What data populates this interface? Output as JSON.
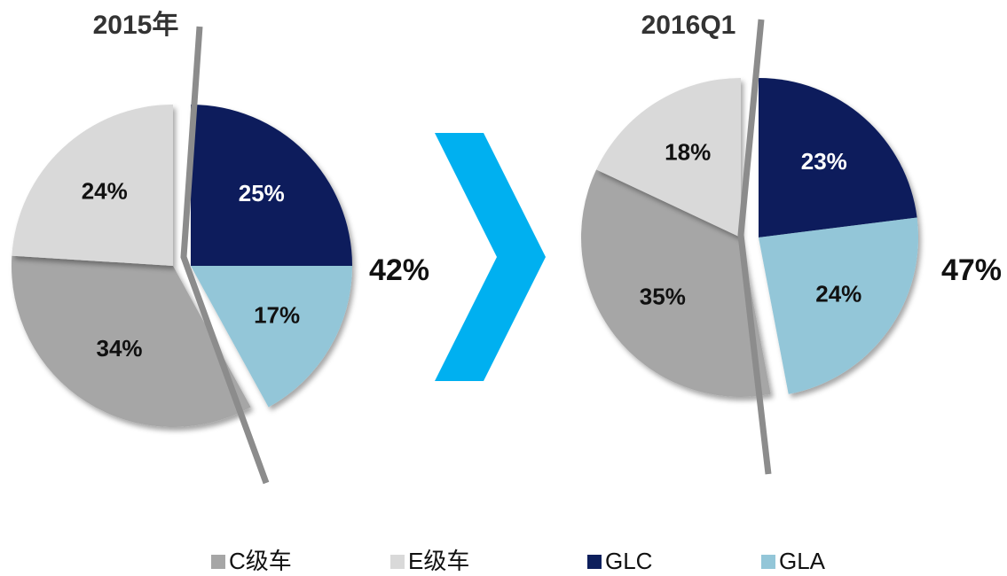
{
  "chart_data": [
    {
      "type": "pie",
      "title": "2015年",
      "categories": [
        "C级车",
        "E级车",
        "GLC",
        "GLA"
      ],
      "values": [
        34,
        24,
        25,
        17
      ],
      "value_labels": [
        "34%",
        "24%",
        "25%",
        "17%"
      ],
      "colors": [
        "#a6a6a6",
        "#d9d9d9",
        "#0d1f5c",
        "#93c6d8"
      ],
      "annotation": "42%"
    },
    {
      "type": "pie",
      "title": "2016Q1",
      "categories": [
        "C级车",
        "E级车",
        "GLC",
        "GLA"
      ],
      "values": [
        35,
        18,
        23,
        24
      ],
      "value_labels": [
        "35%",
        "18%",
        "23%",
        "24%"
      ],
      "colors": [
        "#a6a6a6",
        "#d9d9d9",
        "#0d1f5c",
        "#93c6d8"
      ],
      "annotation": "47%"
    }
  ]
}
